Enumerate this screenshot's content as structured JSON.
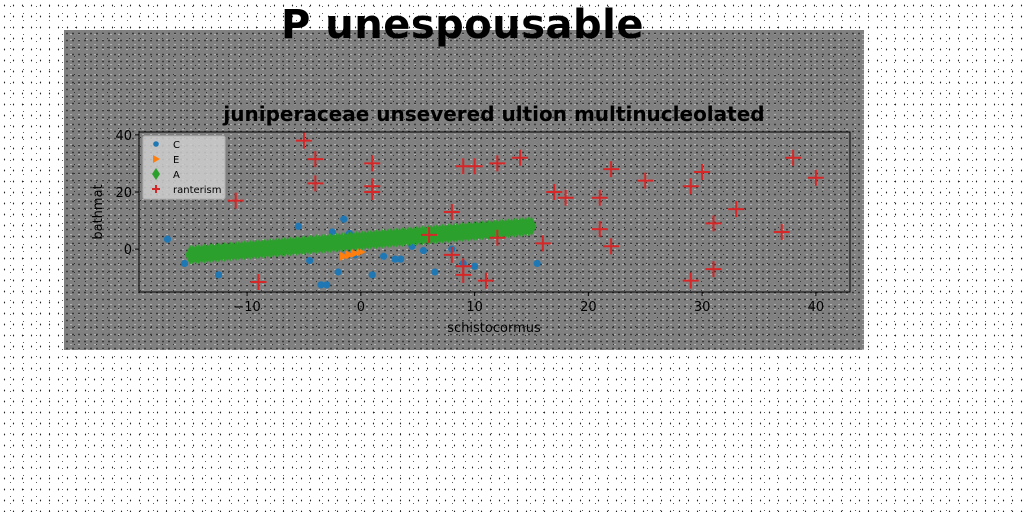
{
  "suptitle": "P unespousable",
  "chart_data": {
    "type": "scatter",
    "title": "juniperaceae unsevered ultion multinucleolated",
    "xlabel": "schistocormus",
    "ylabel": "bathmat",
    "xlim": [
      -19.5,
      43
    ],
    "ylim": [
      -15,
      41
    ],
    "xticks": [
      -10,
      0,
      10,
      20,
      30,
      40
    ],
    "yticks": [
      0,
      20,
      40
    ],
    "xtick_labels": [
      "−10",
      "0",
      "10",
      "20",
      "30",
      "40"
    ],
    "ytick_labels": [
      "0",
      "20",
      "40"
    ],
    "legend_position": "upper-left",
    "series": [
      {
        "name": "C",
        "marker": "circle",
        "color": "#1f77b4",
        "points": [
          [
            -17,
            3.5
          ],
          [
            -15.5,
            -5
          ],
          [
            -12.5,
            -9
          ],
          [
            -5.5,
            8
          ],
          [
            -3.5,
            -12.5
          ],
          [
            -3,
            -12.5
          ],
          [
            -2.5,
            6
          ],
          [
            -2,
            -8
          ],
          [
            -1.5,
            10.5
          ],
          [
            -1,
            5.5
          ],
          [
            -0.5,
            -2
          ],
          [
            1,
            -9
          ],
          [
            2,
            -2.5
          ],
          [
            3,
            -3.5
          ],
          [
            3.5,
            -3.5
          ],
          [
            5.5,
            -0.5
          ],
          [
            6.5,
            -8
          ],
          [
            8,
            0
          ],
          [
            9,
            -5
          ],
          [
            10,
            -6
          ],
          [
            15.5,
            -5
          ],
          [
            -10,
            -1
          ],
          [
            -8,
            0.5
          ],
          [
            4.5,
            1
          ],
          [
            -4.5,
            -4
          ]
        ]
      },
      {
        "name": "E",
        "marker": "triangle-right",
        "color": "#ff7f0e",
        "points": [
          [
            -1,
            -2
          ],
          [
            -0.5,
            -1.5
          ],
          [
            0,
            -1
          ],
          [
            -1.5,
            -2.5
          ]
        ]
      },
      {
        "name": "A",
        "marker": "thin-diamond",
        "color": "#2ca02c",
        "line": {
          "x_start": -15,
          "x_end": 15,
          "y_start": -2,
          "y_end": 8,
          "count": 120
        }
      },
      {
        "name": "ranterism",
        "marker": "plus",
        "color": "#d62728",
        "points": [
          [
            -5,
            38
          ],
          [
            -4,
            31.5
          ],
          [
            -4,
            23
          ],
          [
            -11,
            17
          ],
          [
            -9,
            -11.5
          ],
          [
            1,
            30
          ],
          [
            1,
            22
          ],
          [
            1,
            20
          ],
          [
            6,
            5
          ],
          [
            8,
            13
          ],
          [
            8,
            -2
          ],
          [
            9,
            -6
          ],
          [
            9,
            -9
          ],
          [
            9,
            29
          ],
          [
            10,
            29
          ],
          [
            11,
            -11
          ],
          [
            12,
            30
          ],
          [
            12,
            4
          ],
          [
            14,
            32
          ],
          [
            16,
            2
          ],
          [
            17,
            20
          ],
          [
            18,
            18
          ],
          [
            21,
            18
          ],
          [
            21,
            7
          ],
          [
            22,
            1
          ],
          [
            22,
            28
          ],
          [
            25,
            24
          ],
          [
            29,
            22
          ],
          [
            29,
            -11
          ],
          [
            30,
            27
          ],
          [
            31,
            9
          ],
          [
            31,
            -7
          ],
          [
            33,
            14
          ],
          [
            37,
            6
          ],
          [
            38,
            32
          ],
          [
            40,
            25
          ]
        ]
      }
    ]
  }
}
